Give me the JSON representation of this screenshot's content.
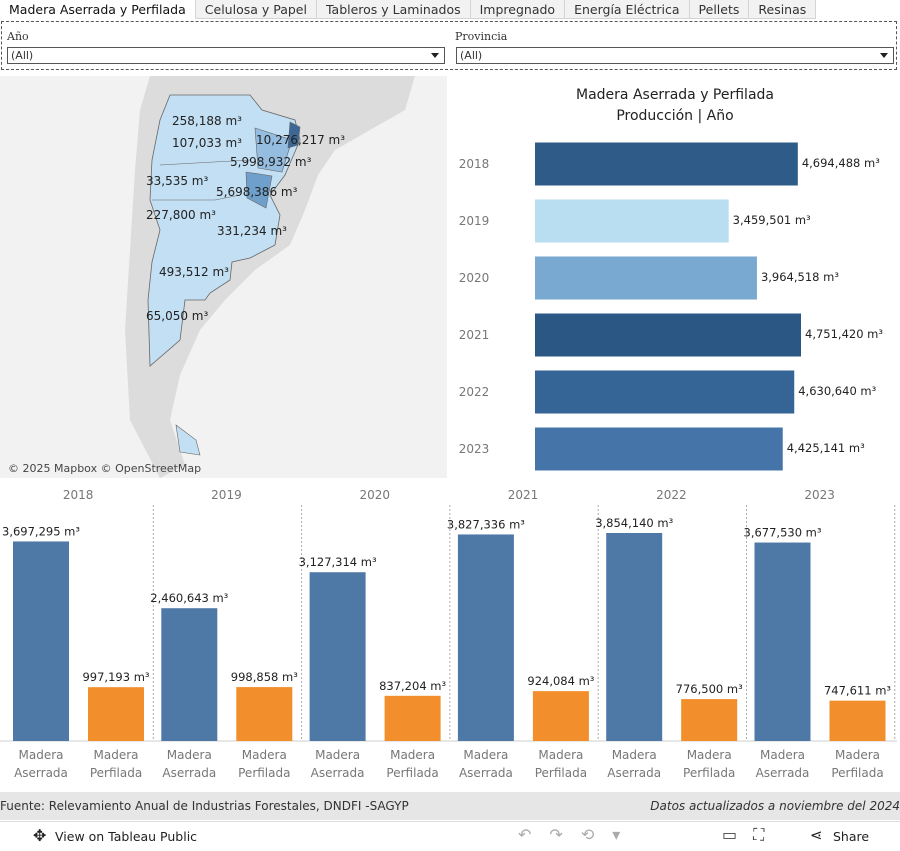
{
  "tabs": {
    "items": [
      "Madera Aserrada y Perfilada",
      "Celulosa y Papel",
      "Tableros y Laminados",
      "Impregnado",
      "Energía Eléctrica",
      "Pellets",
      "Resinas"
    ],
    "active": 0
  },
  "filters": [
    {
      "label": "Año",
      "value": "(All)"
    },
    {
      "label": "Provincia",
      "value": "(All)"
    }
  ],
  "map": {
    "labels": [
      "258,188 m³",
      "107,033 m³",
      "10,276,217 m³",
      "5,998,932 m³",
      "33,535 m³",
      "227,800 m³",
      "5,698,386 m³",
      "331,234 m³",
      "493,512 m³",
      "65,050 m³"
    ],
    "attribution": "© 2025 Mapbox © OpenStreetMap"
  },
  "chart_data": [
    {
      "type": "bar",
      "orientation": "horizontal",
      "title": "Madera Aserrada y Perfilada",
      "subtitle": "Producción | Año",
      "categories": [
        "2018",
        "2019",
        "2020",
        "2021",
        "2022",
        "2023"
      ],
      "values": [
        4694488,
        3459501,
        3964518,
        4751420,
        4630640,
        4425141
      ],
      "value_labels": [
        "4,694,488 m³",
        "3,459,501 m³",
        "3,964,518 m³",
        "4,751,420 m³",
        "4,630,640 m³",
        "4,425,141 m³"
      ],
      "colors": [
        "#2f5b88",
        "#b9ddf1",
        "#79a9d1",
        "#2a5783",
        "#346596",
        "#4574a8"
      ]
    },
    {
      "type": "grouped-bar",
      "panels": [
        "2018",
        "2019",
        "2020",
        "2021",
        "2022",
        "2023"
      ],
      "series": [
        {
          "name": "Madera Aserrada",
          "color": "#4e79a7",
          "values": [
            3697295,
            2460643,
            3127314,
            3827336,
            3854140,
            3677530
          ],
          "value_labels": [
            "3,697,295 m³",
            "2,460,643 m³",
            "3,127,314 m³",
            "3,827,336 m³",
            "3,854,140 m³",
            "3,677,530 m³"
          ]
        },
        {
          "name": "Madera Perfilada",
          "color": "#f28e2b",
          "values": [
            997193,
            998858,
            837204,
            924084,
            776500,
            747611
          ],
          "value_labels": [
            "997,193 m³",
            "998,858 m³",
            "837,204 m³",
            "924,084 m³",
            "776,500 m³",
            "747,611 m³"
          ]
        }
      ]
    }
  ],
  "footer": {
    "source": "Fuente: Relevamiento Anual de Industrias Forestales,  DNDFI -SAGYP",
    "updated": "Datos actualizados a noviembre del 2024"
  },
  "toolbar": {
    "view": "View on Tableau Public",
    "share": "Share"
  }
}
